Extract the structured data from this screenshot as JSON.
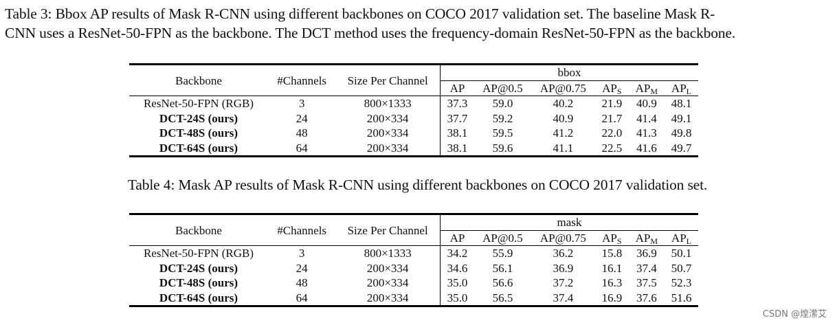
{
  "table3": {
    "caption": "Table 3: Bbox AP results of Mask R-CNN using different backbones on COCO 2017 validation set. The baseline Mask R-CNN uses a ResNet-50-FPN as the backbone. The DCT method uses the frequency-domain ResNet-50-FPN as the backbone.",
    "caption_line1": "Table 3: Bbox AP results of Mask R-CNN using different backbones on COCO 2017 validation set. The baseline Mask R-",
    "caption_line2": "CNN uses a ResNet-50-FPN as the backbone. The DCT method uses the frequency-domain ResNet-50-FPN as the backbone.",
    "headers": {
      "backbone": "Backbone",
      "channels": "#Channels",
      "size": "Size Per Channel",
      "group": "bbox",
      "ap": "AP",
      "ap50": "AP@0.5",
      "ap75": "AP@0.75",
      "aps": "AP",
      "aps_sub": "S",
      "apm": "AP",
      "apm_sub": "M",
      "apl": "AP",
      "apl_sub": "L"
    },
    "rows": [
      {
        "backbone": "ResNet-50-FPN (RGB)",
        "channels": "3",
        "size": "800×1333",
        "ap": "37.3",
        "ap50": "59.0",
        "ap75": "40.2",
        "aps": "21.9",
        "apm": "40.9",
        "apl": "48.1"
      },
      {
        "backbone": "DCT-24S (ours)",
        "channels": "24",
        "size": "200×334",
        "ap": "37.7",
        "ap50": "59.2",
        "ap75": "40.9",
        "aps": "21.7",
        "apm": "41.4",
        "apl": "49.1"
      },
      {
        "backbone": "DCT-48S (ours)",
        "channels": "48",
        "size": "200×334",
        "ap": "38.1",
        "ap50": "59.5",
        "ap75": "41.2",
        "aps": "22.0",
        "apm": "41.3",
        "apl": "49.8"
      },
      {
        "backbone": "DCT-64S (ours)",
        "channels": "64",
        "size": "200×334",
        "ap": "38.1",
        "ap50": "59.6",
        "ap75": "41.1",
        "aps": "22.5",
        "apm": "41.6",
        "apl": "49.7"
      }
    ]
  },
  "table4": {
    "caption": "Table 4: Mask AP results of Mask R-CNN using different backbones on COCO 2017 validation set.",
    "headers": {
      "backbone": "Backbone",
      "channels": "#Channels",
      "size": "Size Per Channel",
      "group": "mask",
      "ap": "AP",
      "ap50": "AP@0.5",
      "ap75": "AP@0.75",
      "aps": "AP",
      "aps_sub": "S",
      "apm": "AP",
      "apm_sub": "M",
      "apl": "AP",
      "apl_sub": "L"
    },
    "rows": [
      {
        "backbone": "ResNet-50-FPN (RGB)",
        "channels": "3",
        "size": "800×1333",
        "ap": "34.2",
        "ap50": "55.9",
        "ap75": "36.2",
        "aps": "15.8",
        "apm": "36.9",
        "apl": "50.1"
      },
      {
        "backbone": "DCT-24S (ours)",
        "channels": "24",
        "size": "200×334",
        "ap": "34.6",
        "ap50": "56.1",
        "ap75": "36.9",
        "aps": "16.1",
        "apm": "37.4",
        "apl": "50.7"
      },
      {
        "backbone": "DCT-48S (ours)",
        "channels": "48",
        "size": "200×334",
        "ap": "35.0",
        "ap50": "56.6",
        "ap75": "37.2",
        "aps": "16.3",
        "apm": "37.5",
        "apl": "52.3"
      },
      {
        "backbone": "DCT-64S (ours)",
        "channels": "64",
        "size": "200×334",
        "ap": "35.0",
        "ap50": "56.5",
        "ap75": "37.4",
        "aps": "16.9",
        "apm": "37.6",
        "apl": "51.6"
      }
    ]
  },
  "watermark": "CSDN @煌潆艾"
}
